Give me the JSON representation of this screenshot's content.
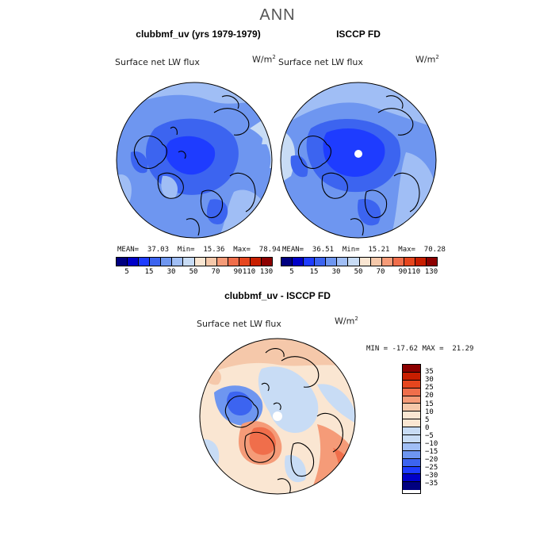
{
  "title": "ANN",
  "panels": {
    "model": {
      "title": "clubbmf_uv (yrs 1979-1979)",
      "variable": "Surface net LW flux",
      "units_base": "W/m",
      "units_exp": "2",
      "stats": "MEAN=  37.03  Min=  15.36  Max=  78.94"
    },
    "obs": {
      "title": "ISCCP FD",
      "variable": "Surface net LW flux",
      "units_base": "W/m",
      "units_exp": "2",
      "stats": "MEAN=  36.51  Min=  15.21  Max=  70.28"
    },
    "diff": {
      "title": "clubbmf_uv - ISCCP FD",
      "variable": "Surface net LW flux",
      "units_base": "W/m",
      "units_exp": "2",
      "stats": "MIN = -17.62 MAX =  21.29"
    }
  },
  "colorbar_abs": {
    "colors": [
      "#000080",
      "#0000c8",
      "#1e3cff",
      "#3c64f0",
      "#6e96f0",
      "#a0bef5",
      "#c8dcf5",
      "#fae6d2",
      "#f5c8aa",
      "#f59b78",
      "#f06e4b",
      "#e6461e",
      "#c81e00",
      "#8c0000"
    ],
    "labels": [
      "5",
      "15",
      "30",
      "50",
      "70",
      "90",
      "110",
      "130"
    ]
  },
  "colorbar_diff": {
    "colors": [
      "#8c0000",
      "#c81e00",
      "#e6461e",
      "#f06e4b",
      "#f59b78",
      "#f5c8aa",
      "#fae6d2",
      "#c8dcf5",
      "#a0bef5",
      "#6e96f0",
      "#3c64f0",
      "#1e3cff",
      "#0000c8",
      "#000080"
    ],
    "labels": [
      "35",
      "30",
      "25",
      "20",
      "15",
      "10",
      "5",
      "0",
      "−5",
      "−10",
      "−15",
      "−20",
      "−25",
      "−30",
      "−35"
    ]
  }
}
